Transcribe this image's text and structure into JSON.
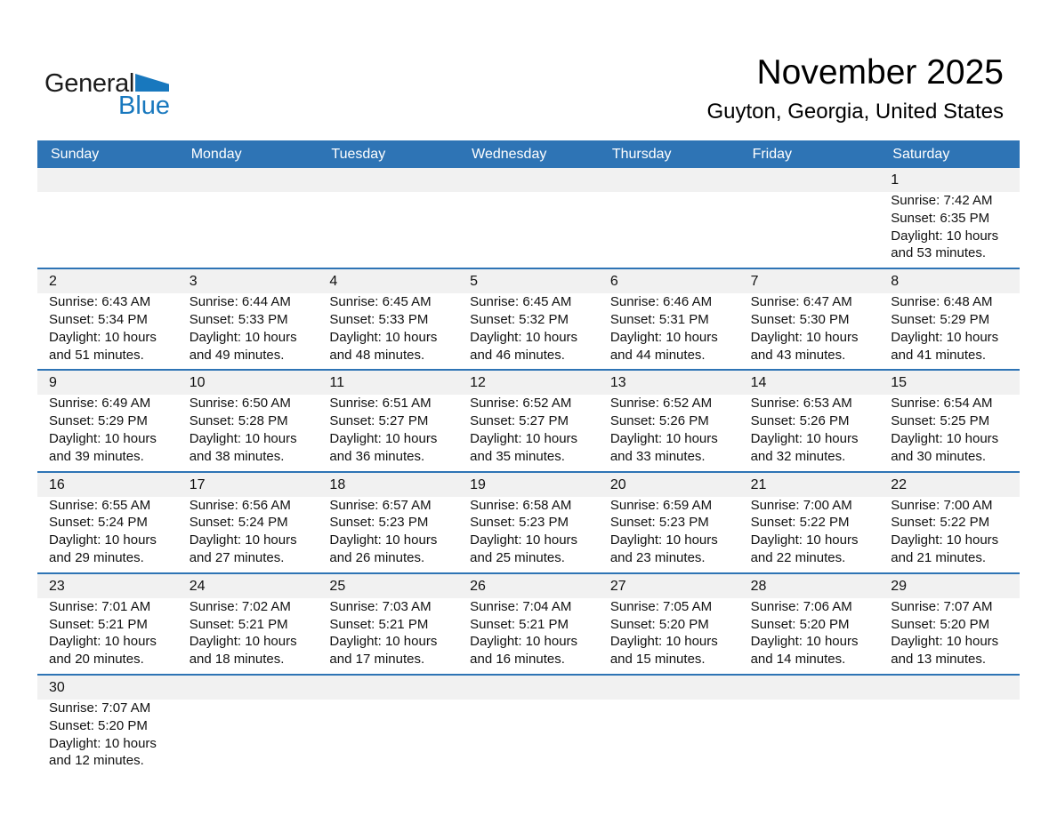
{
  "logo": {
    "general": "General",
    "blue": "Blue"
  },
  "header": {
    "title": "November 2025",
    "subtitle": "Guyton, Georgia, United States"
  },
  "colors": {
    "accent": "#2E74B5",
    "band_bg": "#F1F1F1",
    "logo_blue": "#1878BE",
    "header_text": "#FFFFFF"
  },
  "calendar": {
    "day_headers": [
      "Sunday",
      "Monday",
      "Tuesday",
      "Wednesday",
      "Thursday",
      "Friday",
      "Saturday"
    ],
    "weeks": [
      [
        null,
        null,
        null,
        null,
        null,
        null,
        {
          "day": "1",
          "lines": [
            "Sunrise: 7:42 AM",
            "Sunset: 6:35 PM",
            "Daylight: 10 hours",
            "and 53 minutes."
          ]
        }
      ],
      [
        {
          "day": "2",
          "lines": [
            "Sunrise: 6:43 AM",
            "Sunset: 5:34 PM",
            "Daylight: 10 hours",
            "and 51 minutes."
          ]
        },
        {
          "day": "3",
          "lines": [
            "Sunrise: 6:44 AM",
            "Sunset: 5:33 PM",
            "Daylight: 10 hours",
            "and 49 minutes."
          ]
        },
        {
          "day": "4",
          "lines": [
            "Sunrise: 6:45 AM",
            "Sunset: 5:33 PM",
            "Daylight: 10 hours",
            "and 48 minutes."
          ]
        },
        {
          "day": "5",
          "lines": [
            "Sunrise: 6:45 AM",
            "Sunset: 5:32 PM",
            "Daylight: 10 hours",
            "and 46 minutes."
          ]
        },
        {
          "day": "6",
          "lines": [
            "Sunrise: 6:46 AM",
            "Sunset: 5:31 PM",
            "Daylight: 10 hours",
            "and 44 minutes."
          ]
        },
        {
          "day": "7",
          "lines": [
            "Sunrise: 6:47 AM",
            "Sunset: 5:30 PM",
            "Daylight: 10 hours",
            "and 43 minutes."
          ]
        },
        {
          "day": "8",
          "lines": [
            "Sunrise: 6:48 AM",
            "Sunset: 5:29 PM",
            "Daylight: 10 hours",
            "and 41 minutes."
          ]
        }
      ],
      [
        {
          "day": "9",
          "lines": [
            "Sunrise: 6:49 AM",
            "Sunset: 5:29 PM",
            "Daylight: 10 hours",
            "and 39 minutes."
          ]
        },
        {
          "day": "10",
          "lines": [
            "Sunrise: 6:50 AM",
            "Sunset: 5:28 PM",
            "Daylight: 10 hours",
            "and 38 minutes."
          ]
        },
        {
          "day": "11",
          "lines": [
            "Sunrise: 6:51 AM",
            "Sunset: 5:27 PM",
            "Daylight: 10 hours",
            "and 36 minutes."
          ]
        },
        {
          "day": "12",
          "lines": [
            "Sunrise: 6:52 AM",
            "Sunset: 5:27 PM",
            "Daylight: 10 hours",
            "and 35 minutes."
          ]
        },
        {
          "day": "13",
          "lines": [
            "Sunrise: 6:52 AM",
            "Sunset: 5:26 PM",
            "Daylight: 10 hours",
            "and 33 minutes."
          ]
        },
        {
          "day": "14",
          "lines": [
            "Sunrise: 6:53 AM",
            "Sunset: 5:26 PM",
            "Daylight: 10 hours",
            "and 32 minutes."
          ]
        },
        {
          "day": "15",
          "lines": [
            "Sunrise: 6:54 AM",
            "Sunset: 5:25 PM",
            "Daylight: 10 hours",
            "and 30 minutes."
          ]
        }
      ],
      [
        {
          "day": "16",
          "lines": [
            "Sunrise: 6:55 AM",
            "Sunset: 5:24 PM",
            "Daylight: 10 hours",
            "and 29 minutes."
          ]
        },
        {
          "day": "17",
          "lines": [
            "Sunrise: 6:56 AM",
            "Sunset: 5:24 PM",
            "Daylight: 10 hours",
            "and 27 minutes."
          ]
        },
        {
          "day": "18",
          "lines": [
            "Sunrise: 6:57 AM",
            "Sunset: 5:23 PM",
            "Daylight: 10 hours",
            "and 26 minutes."
          ]
        },
        {
          "day": "19",
          "lines": [
            "Sunrise: 6:58 AM",
            "Sunset: 5:23 PM",
            "Daylight: 10 hours",
            "and 25 minutes."
          ]
        },
        {
          "day": "20",
          "lines": [
            "Sunrise: 6:59 AM",
            "Sunset: 5:23 PM",
            "Daylight: 10 hours",
            "and 23 minutes."
          ]
        },
        {
          "day": "21",
          "lines": [
            "Sunrise: 7:00 AM",
            "Sunset: 5:22 PM",
            "Daylight: 10 hours",
            "and 22 minutes."
          ]
        },
        {
          "day": "22",
          "lines": [
            "Sunrise: 7:00 AM",
            "Sunset: 5:22 PM",
            "Daylight: 10 hours",
            "and 21 minutes."
          ]
        }
      ],
      [
        {
          "day": "23",
          "lines": [
            "Sunrise: 7:01 AM",
            "Sunset: 5:21 PM",
            "Daylight: 10 hours",
            "and 20 minutes."
          ]
        },
        {
          "day": "24",
          "lines": [
            "Sunrise: 7:02 AM",
            "Sunset: 5:21 PM",
            "Daylight: 10 hours",
            "and 18 minutes."
          ]
        },
        {
          "day": "25",
          "lines": [
            "Sunrise: 7:03 AM",
            "Sunset: 5:21 PM",
            "Daylight: 10 hours",
            "and 17 minutes."
          ]
        },
        {
          "day": "26",
          "lines": [
            "Sunrise: 7:04 AM",
            "Sunset: 5:21 PM",
            "Daylight: 10 hours",
            "and 16 minutes."
          ]
        },
        {
          "day": "27",
          "lines": [
            "Sunrise: 7:05 AM",
            "Sunset: 5:20 PM",
            "Daylight: 10 hours",
            "and 15 minutes."
          ]
        },
        {
          "day": "28",
          "lines": [
            "Sunrise: 7:06 AM",
            "Sunset: 5:20 PM",
            "Daylight: 10 hours",
            "and 14 minutes."
          ]
        },
        {
          "day": "29",
          "lines": [
            "Sunrise: 7:07 AM",
            "Sunset: 5:20 PM",
            "Daylight: 10 hours",
            "and 13 minutes."
          ]
        }
      ],
      [
        {
          "day": "30",
          "lines": [
            "Sunrise: 7:07 AM",
            "Sunset: 5:20 PM",
            "Daylight: 10 hours",
            "and 12 minutes."
          ]
        },
        null,
        null,
        null,
        null,
        null,
        null
      ]
    ]
  }
}
